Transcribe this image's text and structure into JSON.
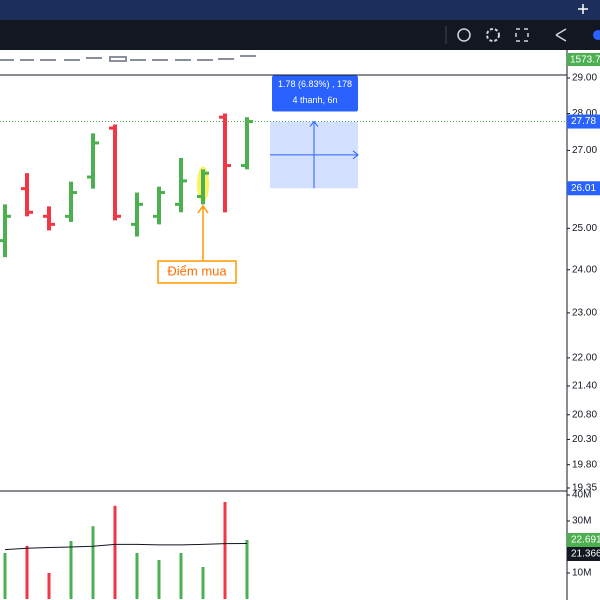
{
  "chart_data": {
    "type": "ohlc",
    "log_scale": true,
    "up_color": "#4caf50",
    "down_color": "#f23645",
    "open": [
      24.7,
      26.0,
      25.3,
      25.3,
      26.3,
      27.6,
      25.1,
      25.3,
      25.6,
      25.8,
      27.9,
      26.6
    ],
    "high": [
      25.6,
      26.4,
      25.55,
      26.18,
      27.46,
      27.7,
      25.9,
      26.05,
      26.8,
      26.5,
      28.0,
      27.9
    ],
    "low": [
      24.3,
      25.3,
      24.95,
      25.16,
      26.0,
      25.2,
      24.8,
      25.1,
      25.4,
      25.6,
      25.4,
      26.5
    ],
    "close": [
      25.3,
      25.4,
      25.1,
      25.9,
      27.2,
      25.3,
      25.6,
      25.9,
      26.2,
      26.4,
      26.6,
      27.78
    ],
    "ylim": [
      19.35,
      29.0
    ],
    "yticks": [
      {
        "value": 29,
        "label": "29.00"
      },
      {
        "value": 28,
        "label": "28.00"
      },
      {
        "value": 27,
        "label": "27.00"
      },
      {
        "value": 25,
        "label": "25.00"
      },
      {
        "value": 24,
        "label": "24.00"
      },
      {
        "value": 23,
        "label": "23.00"
      },
      {
        "value": 22,
        "label": "22.00"
      },
      {
        "value": 21.4,
        "label": "21.40"
      },
      {
        "value": 20.8,
        "label": "20.80"
      },
      {
        "value": 20.3,
        "label": "20.30"
      },
      {
        "value": 19.8,
        "label": "19.80"
      },
      {
        "value": 19.35,
        "label": "19.35"
      }
    ],
    "last_price": 27.78,
    "measure_from": 26.01,
    "measure_to": 27.78,
    "measure_label": "1.78 (6.83%) , 178",
    "measure_sublabel": "4 thanh, 6n",
    "annotation": "Điểm mua",
    "top_label": "1573.7",
    "volume": [
      17.7,
      20.4,
      10,
      22.3,
      28,
      35.8,
      17.7,
      15,
      17.7,
      12.3,
      37.3,
      22.691
    ],
    "volume_ma": [
      19,
      19.5,
      19.8,
      20,
      20.3,
      21,
      21,
      20.8,
      20.8,
      21,
      21.3,
      21.366
    ],
    "volume_ylim": [
      0,
      40
    ],
    "volume_yticks": [
      {
        "value": 40,
        "label": "40M"
      },
      {
        "value": 30,
        "label": "30M"
      },
      {
        "value": 10,
        "label": "10M"
      }
    ]
  }
}
